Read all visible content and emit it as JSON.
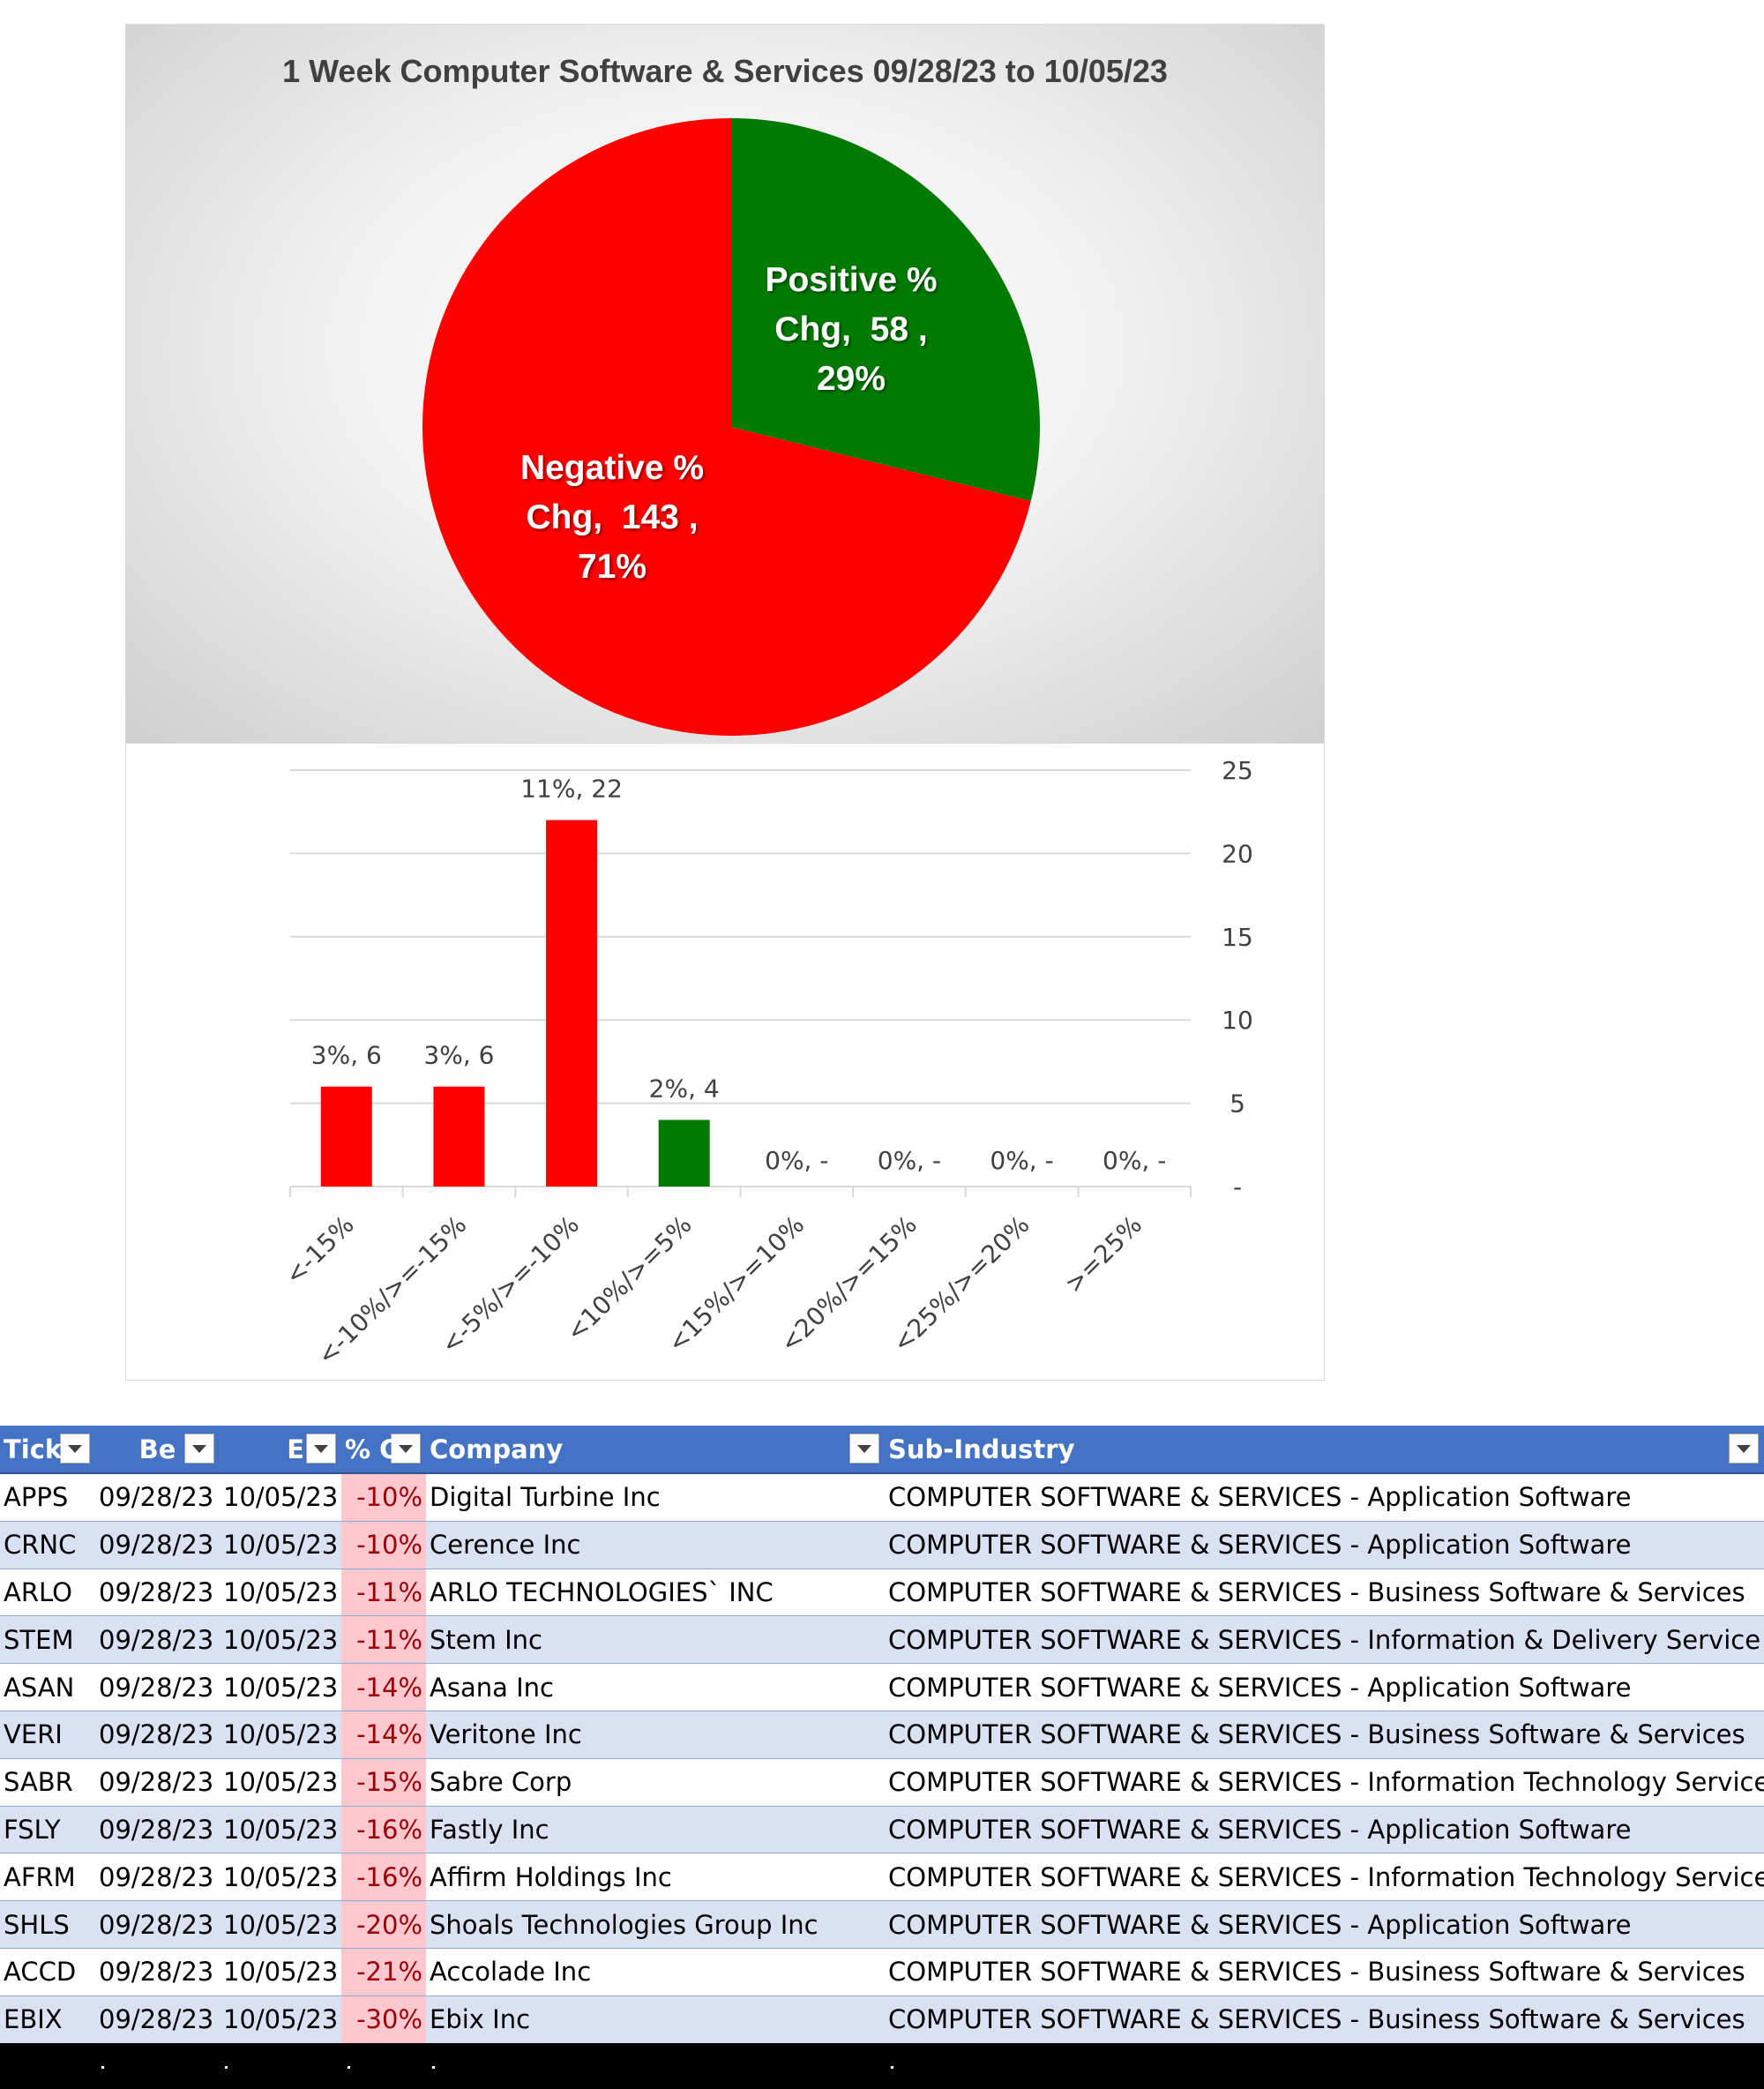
{
  "chart_data": [
    {
      "type": "pie",
      "title": "1 Week Computer Software & Services 09/28/23 to 10/05/23",
      "slices": [
        {
          "name": "Positive % Chg",
          "value": 58,
          "percent": "29%",
          "color": "#007a00"
        },
        {
          "name": "Negative % Chg",
          "value": 143,
          "percent": "71%",
          "color": "#ff0000"
        }
      ]
    },
    {
      "type": "bar",
      "title": "",
      "categories": [
        "<-15%",
        "<-10%/>=-15%",
        "<-5%/>=-10%",
        "<10%/>=5%",
        "<15%/>=10%",
        "<20%/>=15%",
        "<25%/>=20%",
        ">=25%"
      ],
      "values": [
        6,
        6,
        22,
        4,
        0,
        0,
        0,
        0
      ],
      "data_labels": [
        "3%,  6",
        "3%,  6",
        "11%,  22",
        "2%,  4",
        "0%,  -",
        "0%,  -",
        "0%,  -",
        "0%,  -"
      ],
      "colors": [
        "#ff0000",
        "#ff0000",
        "#ff0000",
        "#007a00",
        "#ff0000",
        "#ff0000",
        "#ff0000",
        "#ff0000"
      ],
      "ylim": [
        0,
        25
      ],
      "yticks": [
        "-",
        "5",
        "10",
        "15",
        "20",
        "25"
      ],
      "y_axis_side": "right",
      "grid": true
    }
  ],
  "table": {
    "headers": [
      "Tick",
      "Be",
      "E",
      "% C",
      "Company",
      "Sub-Industry"
    ],
    "rows": [
      [
        "APPS",
        "09/28/23",
        "10/05/23",
        "-10%",
        "Digital Turbine Inc",
        "COMPUTER SOFTWARE & SERVICES - Application Software"
      ],
      [
        "CRNC",
        "09/28/23",
        "10/05/23",
        "-10%",
        "Cerence Inc",
        "COMPUTER SOFTWARE & SERVICES - Application Software"
      ],
      [
        "ARLO",
        "09/28/23",
        "10/05/23",
        "-11%",
        "ARLO TECHNOLOGIES` INC",
        "COMPUTER SOFTWARE & SERVICES - Business Software & Services"
      ],
      [
        "STEM",
        "09/28/23",
        "10/05/23",
        "-11%",
        "Stem Inc",
        "COMPUTER SOFTWARE & SERVICES - Information & Delivery Service"
      ],
      [
        "ASAN",
        "09/28/23",
        "10/05/23",
        "-14%",
        "Asana Inc",
        "COMPUTER SOFTWARE & SERVICES - Application Software"
      ],
      [
        "VERI",
        "09/28/23",
        "10/05/23",
        "-14%",
        "Veritone Inc",
        "COMPUTER SOFTWARE & SERVICES - Business Software & Services"
      ],
      [
        "SABR",
        "09/28/23",
        "10/05/23",
        "-15%",
        "Sabre Corp",
        "COMPUTER SOFTWARE & SERVICES - Information Technology Services"
      ],
      [
        "FSLY",
        "09/28/23",
        "10/05/23",
        "-16%",
        "Fastly Inc",
        "COMPUTER SOFTWARE & SERVICES - Application Software"
      ],
      [
        "AFRM",
        "09/28/23",
        "10/05/23",
        "-16%",
        "Affirm Holdings Inc",
        "COMPUTER SOFTWARE & SERVICES - Information Technology Services"
      ],
      [
        "SHLS",
        "09/28/23",
        "10/05/23",
        "-20%",
        "Shoals Technologies Group Inc",
        "COMPUTER SOFTWARE & SERVICES - Application Software"
      ],
      [
        "ACCD",
        "09/28/23",
        "10/05/23",
        "-21%",
        "Accolade Inc",
        "COMPUTER SOFTWARE & SERVICES - Business Software & Services"
      ],
      [
        "EBIX",
        "09/28/23",
        "10/05/23",
        "-30%",
        "Ebix Inc",
        "COMPUTER SOFTWARE & SERVICES - Business Software & Services"
      ]
    ]
  },
  "colors": {
    "header_blue": "#4472c4",
    "row_band": "#d9e1f2",
    "pct_fill": "#ffc7ce",
    "pct_text": "#9c0006"
  }
}
